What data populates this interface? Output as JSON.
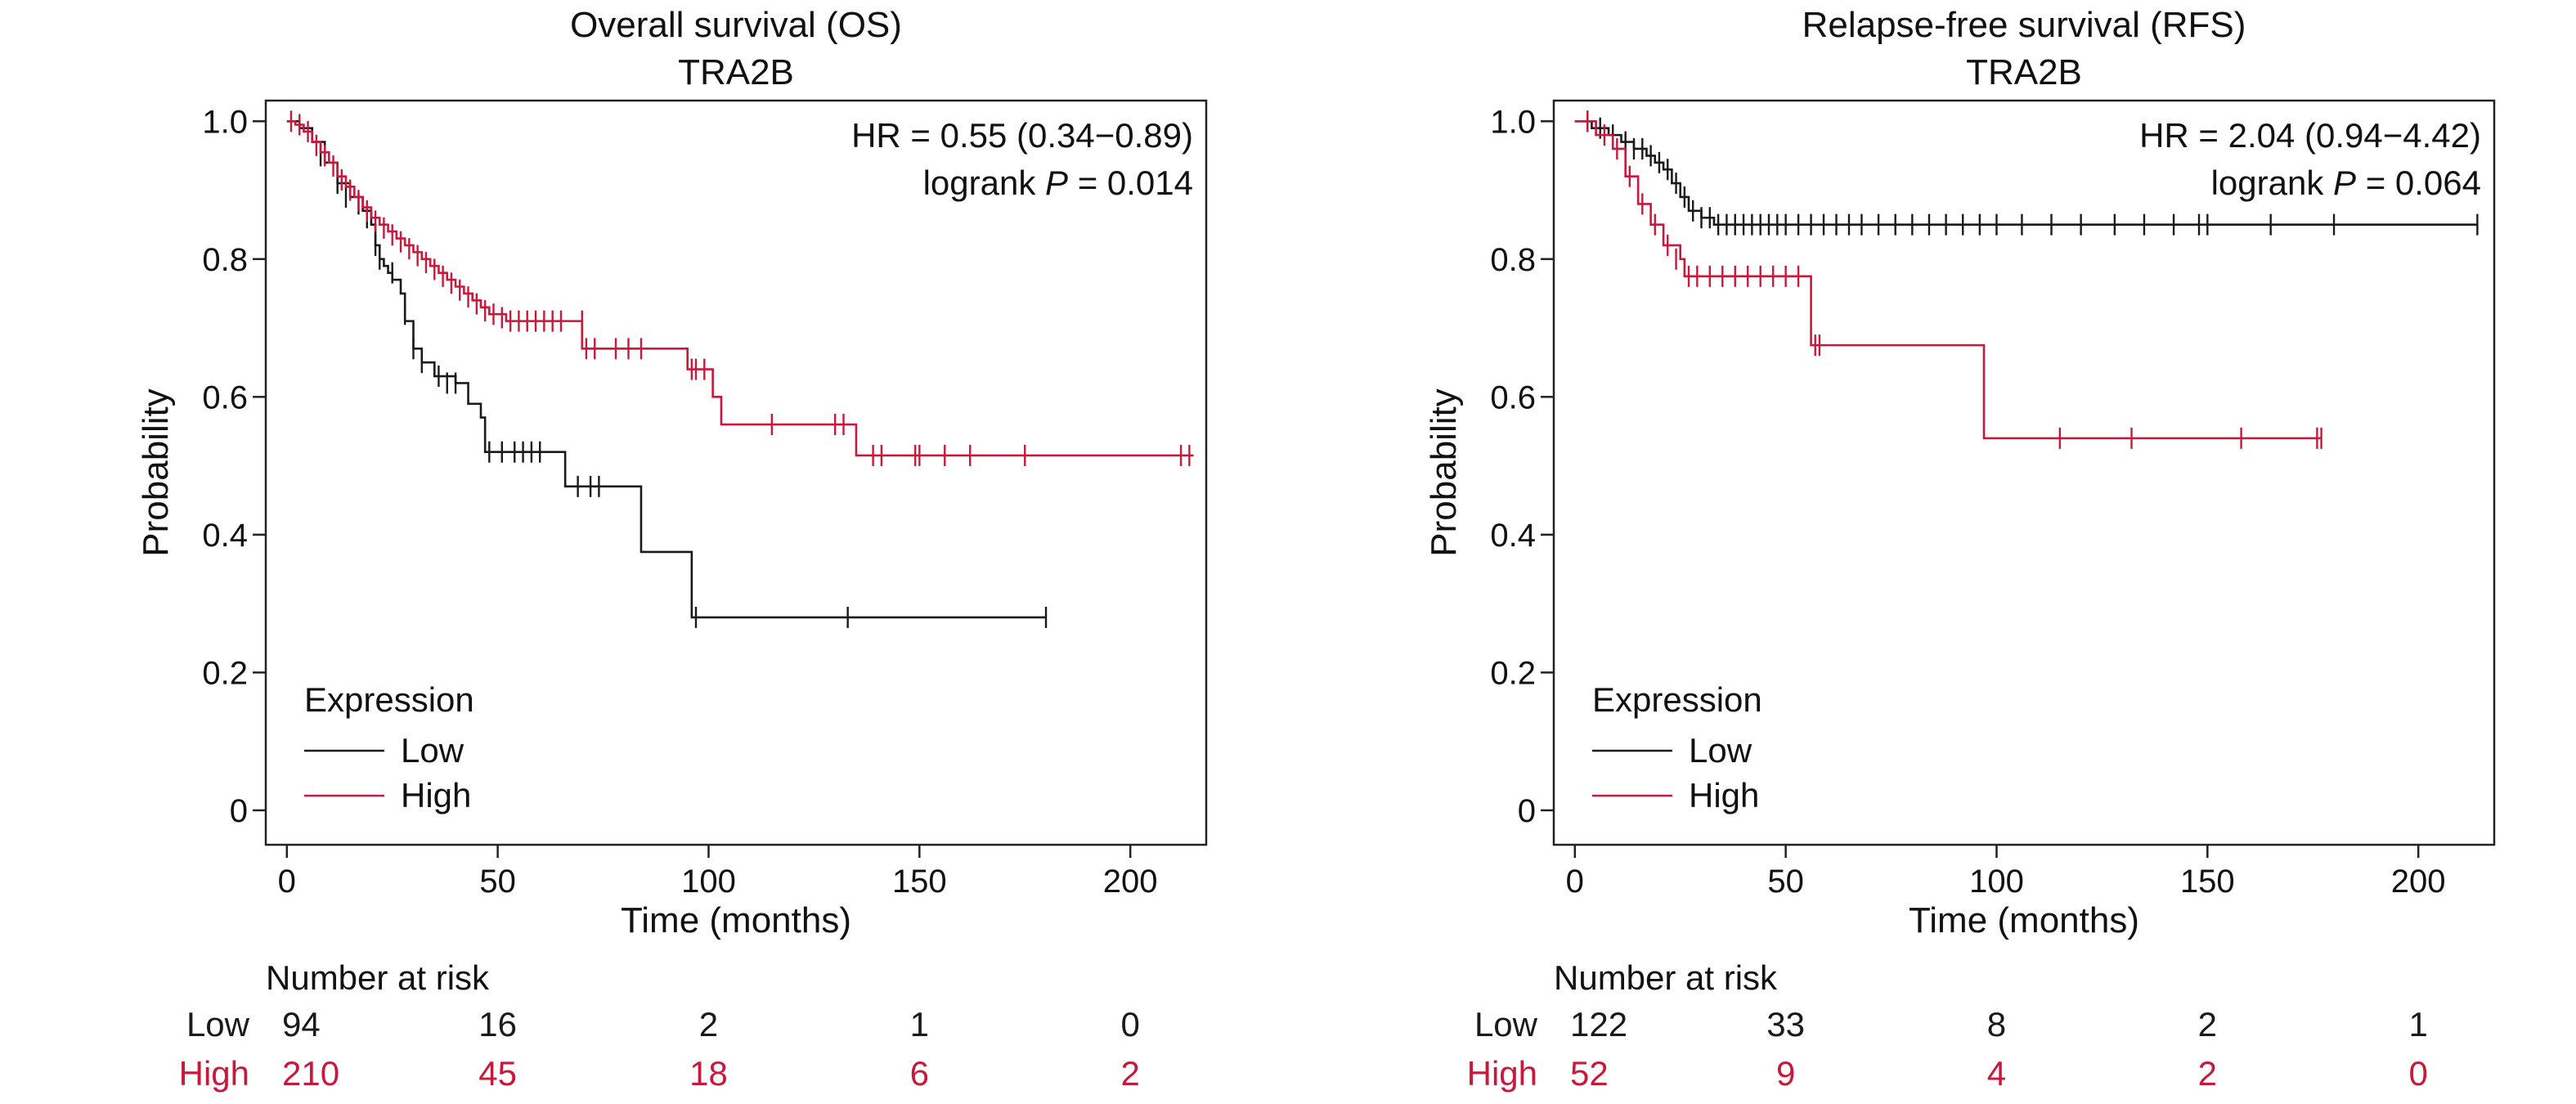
{
  "chart_data": [
    {
      "type": "line",
      "title": "Overall survival (OS)",
      "subtitle": "TRA2B",
      "xlabel": "Time (months)",
      "ylabel": "Probability",
      "xlim": [
        -5,
        218
      ],
      "ylim": [
        -0.05,
        1.03
      ],
      "xticks": [
        0,
        50,
        100,
        150,
        200
      ],
      "yticks": [
        0,
        0.2,
        0.4,
        0.6,
        0.8,
        1.0
      ],
      "ytick_labels": [
        "0",
        "0.2",
        "0.4",
        "0.6",
        "0.8",
        "1.0"
      ],
      "grid": false,
      "stats": {
        "hr": "HR = 0.55 (0.34−0.89)",
        "logrank_prefix": "logrank ",
        "p_symbol": "P",
        "p_value": " = 0.014"
      },
      "legend": {
        "title": "Expression",
        "position": "bottom-left"
      },
      "series": [
        {
          "name": "Low",
          "color": "#1a1a1a",
          "steps": [
            [
              0,
              1.0
            ],
            [
              3,
              0.99
            ],
            [
              6,
              0.97
            ],
            [
              9,
              0.94
            ],
            [
              12,
              0.91
            ],
            [
              15,
              0.89
            ],
            [
              18,
              0.87
            ],
            [
              20,
              0.85
            ],
            [
              21,
              0.82
            ],
            [
              22,
              0.8
            ],
            [
              23,
              0.79
            ],
            [
              24,
              0.78
            ],
            [
              25,
              0.77
            ],
            [
              27,
              0.75
            ],
            [
              28,
              0.71
            ],
            [
              30,
              0.67
            ],
            [
              32,
              0.65
            ],
            [
              35,
              0.63
            ],
            [
              40,
              0.62
            ],
            [
              43,
              0.59
            ],
            [
              46,
              0.57
            ],
            [
              47,
              0.52
            ],
            [
              55,
              0.52
            ],
            [
              66,
              0.47
            ],
            [
              84,
              0.375
            ],
            [
              96,
              0.28
            ],
            [
              180,
              0.28
            ]
          ],
          "censors": [
            [
              8,
              0.95
            ],
            [
              12,
              0.91
            ],
            [
              14,
              0.89
            ],
            [
              17,
              0.88
            ],
            [
              19,
              0.86
            ],
            [
              21,
              0.82
            ],
            [
              22,
              0.8
            ],
            [
              25,
              0.78
            ],
            [
              28,
              0.72
            ],
            [
              30,
              0.67
            ],
            [
              32,
              0.65
            ],
            [
              36,
              0.63
            ],
            [
              38,
              0.62
            ],
            [
              40,
              0.62
            ],
            [
              48,
              0.52
            ],
            [
              51,
              0.52
            ],
            [
              54,
              0.52
            ],
            [
              56,
              0.52
            ],
            [
              58,
              0.52
            ],
            [
              60,
              0.52
            ],
            [
              69,
              0.47
            ],
            [
              72,
              0.47
            ],
            [
              74,
              0.47
            ],
            [
              97,
              0.28
            ],
            [
              133,
              0.28
            ],
            [
              180,
              0.28
            ]
          ]
        },
        {
          "name": "High",
          "color": "#c8193c",
          "steps": [
            [
              0,
              1.0
            ],
            [
              2,
              0.995
            ],
            [
              4,
              0.985
            ],
            [
              6,
              0.97
            ],
            [
              8,
              0.955
            ],
            [
              10,
              0.94
            ],
            [
              12,
              0.92
            ],
            [
              14,
              0.905
            ],
            [
              16,
              0.89
            ],
            [
              18,
              0.875
            ],
            [
              20,
              0.86
            ],
            [
              22,
              0.85
            ],
            [
              24,
              0.84
            ],
            [
              26,
              0.83
            ],
            [
              28,
              0.82
            ],
            [
              30,
              0.81
            ],
            [
              32,
              0.8
            ],
            [
              34,
              0.79
            ],
            [
              36,
              0.78
            ],
            [
              38,
              0.77
            ],
            [
              40,
              0.76
            ],
            [
              42,
              0.75
            ],
            [
              44,
              0.74
            ],
            [
              46,
              0.73
            ],
            [
              48,
              0.72
            ],
            [
              52,
              0.71
            ],
            [
              70,
              0.67
            ],
            [
              95,
              0.64
            ],
            [
              101,
              0.6
            ],
            [
              103,
              0.56
            ],
            [
              135,
              0.515
            ],
            [
              215,
              0.515
            ]
          ],
          "censors": [
            [
              1,
              1.0
            ],
            [
              3,
              0.995
            ],
            [
              5,
              0.985
            ],
            [
              7,
              0.965
            ],
            [
              9,
              0.95
            ],
            [
              11,
              0.935
            ],
            [
              13,
              0.915
            ],
            [
              15,
              0.9
            ],
            [
              17,
              0.885
            ],
            [
              19,
              0.87
            ],
            [
              21,
              0.855
            ],
            [
              23,
              0.845
            ],
            [
              25,
              0.835
            ],
            [
              27,
              0.825
            ],
            [
              29,
              0.815
            ],
            [
              31,
              0.805
            ],
            [
              33,
              0.795
            ],
            [
              35,
              0.785
            ],
            [
              37,
              0.775
            ],
            [
              39,
              0.765
            ],
            [
              41,
              0.755
            ],
            [
              43,
              0.745
            ],
            [
              45,
              0.735
            ],
            [
              47,
              0.725
            ],
            [
              49,
              0.72
            ],
            [
              51,
              0.715
            ],
            [
              53,
              0.71
            ],
            [
              55,
              0.71
            ],
            [
              57,
              0.71
            ],
            [
              59,
              0.71
            ],
            [
              61,
              0.71
            ],
            [
              63,
              0.71
            ],
            [
              65,
              0.71
            ],
            [
              70,
              0.71
            ],
            [
              71,
              0.67
            ],
            [
              73,
              0.67
            ],
            [
              78,
              0.67
            ],
            [
              81,
              0.67
            ],
            [
              84,
              0.67
            ],
            [
              96,
              0.64
            ],
            [
              97,
              0.64
            ],
            [
              99,
              0.64
            ],
            [
              115,
              0.56
            ],
            [
              130,
              0.56
            ],
            [
              132,
              0.56
            ],
            [
              139,
              0.515
            ],
            [
              141,
              0.515
            ],
            [
              149,
              0.515
            ],
            [
              150,
              0.515
            ],
            [
              156,
              0.515
            ],
            [
              162,
              0.515
            ],
            [
              175,
              0.515
            ],
            [
              212,
              0.515
            ],
            [
              214,
              0.515
            ]
          ]
        }
      ],
      "risk_table": {
        "header": "Number at risk",
        "rows": [
          {
            "label": "Low",
            "values": [
              "94",
              "16",
              "2",
              "1",
              "0"
            ],
            "color": "#1a1a1a"
          },
          {
            "label": "High",
            "values": [
              "210",
              "45",
              "18",
              "6",
              "2"
            ],
            "color": "#c8193c"
          }
        ]
      }
    },
    {
      "type": "line",
      "title": "Relapse-free survival (RFS)",
      "subtitle": "TRA2B",
      "xlabel": "Time (months)",
      "ylabel": "Probability",
      "xlim": [
        -5,
        218
      ],
      "ylim": [
        -0.05,
        1.03
      ],
      "xticks": [
        0,
        50,
        100,
        150,
        200
      ],
      "yticks": [
        0,
        0.2,
        0.4,
        0.6,
        0.8,
        1.0
      ],
      "ytick_labels": [
        "0",
        "0.2",
        "0.4",
        "0.6",
        "0.8",
        "1.0"
      ],
      "grid": false,
      "stats": {
        "hr": "HR = 2.04 (0.94−4.42)",
        "logrank_prefix": "logrank ",
        "p_symbol": "P",
        "p_value": " = 0.064"
      },
      "legend": {
        "title": "Expression",
        "position": "bottom-left"
      },
      "series": [
        {
          "name": "Low",
          "color": "#1a1a1a",
          "steps": [
            [
              0,
              1.0
            ],
            [
              4,
              0.99
            ],
            [
              8,
              0.98
            ],
            [
              11,
              0.97
            ],
            [
              14,
              0.96
            ],
            [
              17,
              0.95
            ],
            [
              19,
              0.94
            ],
            [
              21,
              0.93
            ],
            [
              23,
              0.91
            ],
            [
              25,
              0.89
            ],
            [
              27,
              0.87
            ],
            [
              30,
              0.86
            ],
            [
              33,
              0.85
            ],
            [
              214,
              0.85
            ]
          ],
          "censors": [
            [
              3,
              1.0
            ],
            [
              6,
              0.99
            ],
            [
              9,
              0.98
            ],
            [
              12,
              0.97
            ],
            [
              14,
              0.96
            ],
            [
              16,
              0.96
            ],
            [
              18,
              0.95
            ],
            [
              20,
              0.94
            ],
            [
              22,
              0.93
            ],
            [
              24,
              0.91
            ],
            [
              26,
              0.89
            ],
            [
              28,
              0.87
            ],
            [
              30,
              0.86
            ],
            [
              32,
              0.86
            ],
            [
              34,
              0.85
            ],
            [
              36,
              0.85
            ],
            [
              38,
              0.85
            ],
            [
              40,
              0.85
            ],
            [
              42,
              0.85
            ],
            [
              44,
              0.85
            ],
            [
              46,
              0.85
            ],
            [
              48,
              0.85
            ],
            [
              50,
              0.85
            ],
            [
              53,
              0.85
            ],
            [
              56,
              0.85
            ],
            [
              59,
              0.85
            ],
            [
              62,
              0.85
            ],
            [
              65,
              0.85
            ],
            [
              68,
              0.85
            ],
            [
              72,
              0.85
            ],
            [
              76,
              0.85
            ],
            [
              80,
              0.85
            ],
            [
              84,
              0.85
            ],
            [
              88,
              0.85
            ],
            [
              92,
              0.85
            ],
            [
              96,
              0.85
            ],
            [
              100,
              0.85
            ],
            [
              106,
              0.85
            ],
            [
              113,
              0.85
            ],
            [
              120,
              0.85
            ],
            [
              128,
              0.85
            ],
            [
              135,
              0.85
            ],
            [
              142,
              0.85
            ],
            [
              148,
              0.85
            ],
            [
              150,
              0.85
            ],
            [
              165,
              0.85
            ],
            [
              180,
              0.85
            ],
            [
              214,
              0.85
            ]
          ]
        },
        {
          "name": "High",
          "color": "#c8193c",
          "steps": [
            [
              0,
              1.0
            ],
            [
              5,
              0.98
            ],
            [
              9,
              0.96
            ],
            [
              12,
              0.92
            ],
            [
              15,
              0.88
            ],
            [
              18,
              0.85
            ],
            [
              21,
              0.82
            ],
            [
              25,
              0.8
            ],
            [
              26,
              0.775
            ],
            [
              56,
              0.675
            ],
            [
              97,
              0.54
            ],
            [
              177,
              0.54
            ]
          ],
          "censors": [
            [
              3,
              1.0
            ],
            [
              7,
              0.98
            ],
            [
              10,
              0.96
            ],
            [
              13,
              0.92
            ],
            [
              16,
              0.88
            ],
            [
              19,
              0.85
            ],
            [
              22,
              0.82
            ],
            [
              24,
              0.8
            ],
            [
              27,
              0.775
            ],
            [
              29,
              0.775
            ],
            [
              32,
              0.775
            ],
            [
              35,
              0.775
            ],
            [
              38,
              0.775
            ],
            [
              41,
              0.775
            ],
            [
              44,
              0.775
            ],
            [
              47,
              0.775
            ],
            [
              50,
              0.775
            ],
            [
              53,
              0.775
            ],
            [
              57,
              0.675
            ],
            [
              58,
              0.675
            ],
            [
              115,
              0.54
            ],
            [
              132,
              0.54
            ],
            [
              158,
              0.54
            ],
            [
              176,
              0.54
            ],
            [
              177,
              0.54
            ]
          ]
        }
      ],
      "risk_table": {
        "header": "Number at risk",
        "rows": [
          {
            "label": "Low",
            "values": [
              "122",
              "33",
              "8",
              "2",
              "1"
            ],
            "color": "#1a1a1a"
          },
          {
            "label": "High",
            "values": [
              "52",
              "9",
              "4",
              "2",
              "0"
            ],
            "color": "#c8193c"
          }
        ]
      }
    }
  ]
}
